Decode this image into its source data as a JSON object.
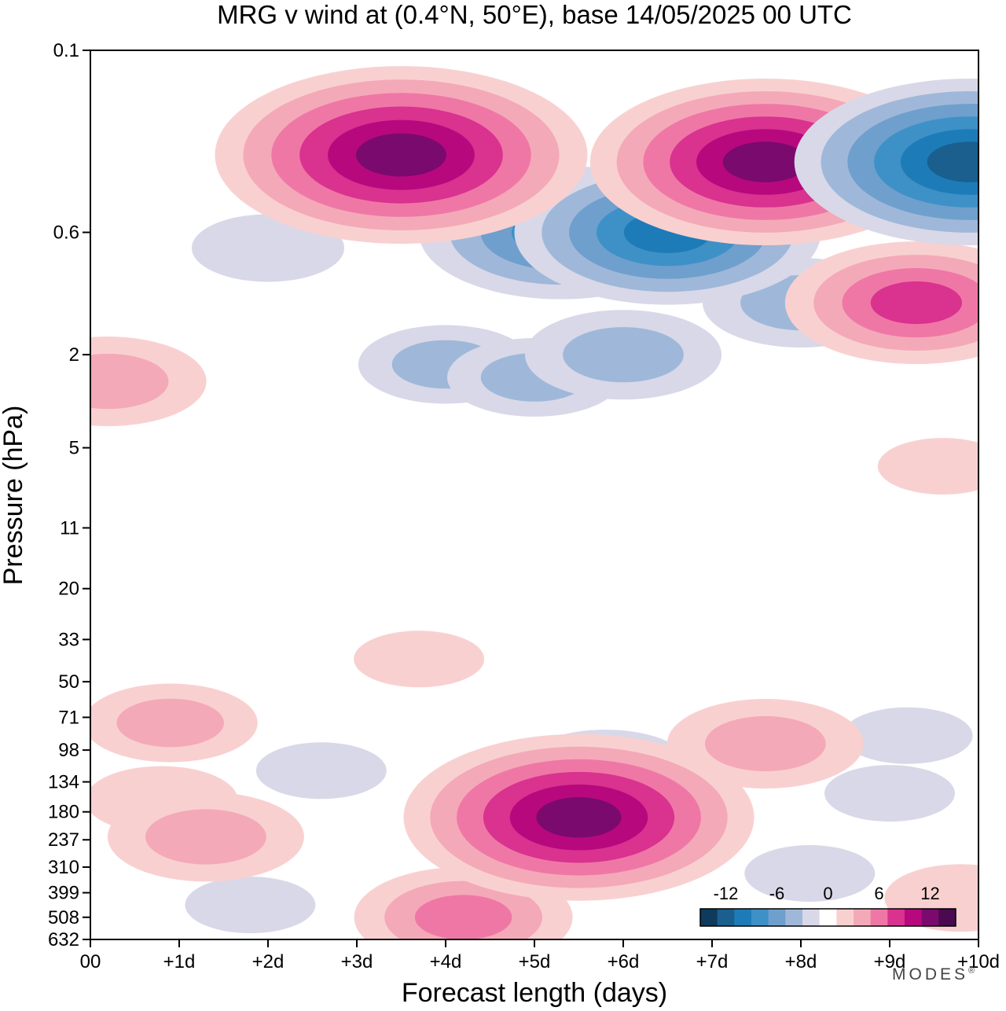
{
  "chart_data": {
    "type": "heatmap",
    "title": "MRG v wind at (0.4°N, 50°E),  base 14/05/2025  00 UTC",
    "xlabel": "Forecast length (days)",
    "ylabel": "Pressure (hPa)",
    "x_tick_labels": [
      "00",
      "+1d",
      "+2d",
      "+3d",
      "+4d",
      "+5d",
      "+6d",
      "+7d",
      "+8d",
      "+9d",
      "+10d"
    ],
    "y_tick_labels": [
      "0.1",
      "0.6",
      "2",
      "5",
      "11",
      "20",
      "33",
      "50",
      "71",
      "98",
      "134",
      "180",
      "237",
      "310",
      "399",
      "508",
      "632"
    ],
    "xlim": [
      0,
      10
    ],
    "ylim_hpa": [
      0.1,
      632
    ],
    "y_scale": "log (inverted)",
    "colorbar": {
      "tick_labels": [
        "-12",
        "-6",
        "0",
        "6",
        "12"
      ],
      "levels": [
        -14,
        -12,
        -10,
        -8,
        -6,
        -4,
        -2,
        0,
        2,
        4,
        6,
        8,
        10,
        12,
        14
      ],
      "colors": [
        "#0e3a5c",
        "#1a5f8e",
        "#1d7cb8",
        "#3d91c6",
        "#6f9fcd",
        "#9fb8d9",
        "#d8d8e8",
        "#ffffff",
        "#f9d0d0",
        "#f4a9b8",
        "#ef77a6",
        "#d9328f",
        "#b8087e",
        "#7a0a6e",
        "#4a0a4f"
      ]
    },
    "features": [
      {
        "x": 5.5,
        "p": 190,
        "v": 12
      },
      {
        "x": 1.3,
        "p": 230,
        "v": 5
      },
      {
        "x": 4.2,
        "p": 508,
        "v": 6
      },
      {
        "x": 7.6,
        "p": 92,
        "v": 5
      },
      {
        "x": 0.9,
        "p": 75,
        "v": 4
      },
      {
        "x": 3.5,
        "p": 0.28,
        "v": 13
      },
      {
        "x": 7.6,
        "p": 0.3,
        "v": 12
      },
      {
        "x": 6.5,
        "p": 0.6,
        "v": -10
      },
      {
        "x": 5.3,
        "p": 0.6,
        "v": -9
      },
      {
        "x": 9.9,
        "p": 0.3,
        "v": -12
      },
      {
        "x": 5.8,
        "p": 118,
        "v": -4
      },
      {
        "x": 1.8,
        "p": 450,
        "v": -2
      },
      {
        "x": 8.1,
        "p": 330,
        "v": -2
      },
      {
        "x": 0.2,
        "p": 2.6,
        "v": 5
      },
      {
        "x": 9.3,
        "p": 1.2,
        "v": 8
      },
      {
        "x": 4.0,
        "p": 2.2,
        "v": -4
      },
      {
        "x": 5.0,
        "p": 2.5,
        "v": -4
      },
      {
        "x": 6.0,
        "p": 2.0,
        "v": -5
      },
      {
        "x": 8.0,
        "p": 1.2,
        "v": -5
      },
      {
        "x": 2.0,
        "p": 0.7,
        "v": -3
      },
      {
        "x": 3.7,
        "p": 40,
        "v": 2
      },
      {
        "x": 0.8,
        "p": 160,
        "v": 3
      },
      {
        "x": 2.6,
        "p": 120,
        "v": -2
      },
      {
        "x": 9.6,
        "p": 6,
        "v": 2
      },
      {
        "x": 9.2,
        "p": 85,
        "v": -2
      },
      {
        "x": 9.0,
        "p": 150,
        "v": -2
      },
      {
        "x": 9.8,
        "p": 420,
        "v": 3
      }
    ]
  },
  "logo": "MODES",
  "logo_mark": "®"
}
